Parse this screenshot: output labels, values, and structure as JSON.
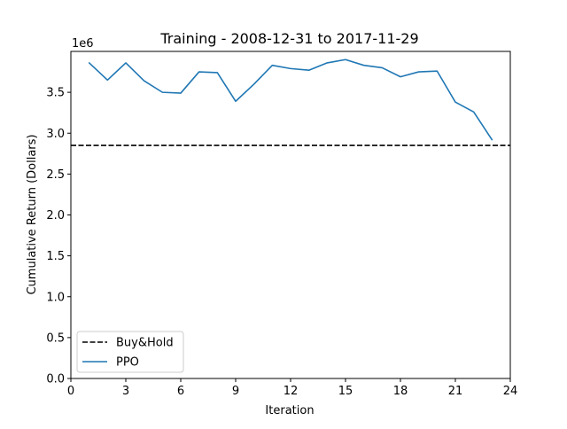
{
  "chart_data": {
    "type": "line",
    "title": "Training - 2008-12-31 to 2017-11-29",
    "xlabel": "Iteration",
    "ylabel": "Cumulative Return (Dollars)",
    "y_offset_text": "1e6",
    "xlim": [
      0,
      24
    ],
    "ylim": [
      0.0,
      4.0
    ],
    "x_ticks": [
      0,
      3,
      6,
      9,
      12,
      15,
      18,
      21,
      24
    ],
    "x_tick_labels": [
      "0",
      "3",
      "6",
      "9",
      "12",
      "15",
      "18",
      "21",
      "24"
    ],
    "y_ticks": [
      0.0,
      0.5,
      1.0,
      1.5,
      2.0,
      2.5,
      3.0,
      3.5
    ],
    "y_tick_labels": [
      "0.0",
      "0.5",
      "1.0",
      "1.5",
      "2.0",
      "2.5",
      "3.0",
      "3.5"
    ],
    "grid": false,
    "legend_position": "lower-left",
    "series": [
      {
        "name": "Buy&Hold",
        "style": "dashed",
        "color": "#000000",
        "x": [
          0,
          24
        ],
        "y": [
          2.85,
          2.85
        ]
      },
      {
        "name": "PPO",
        "style": "solid",
        "color": "#1f77b4",
        "x": [
          1,
          2,
          3,
          4,
          5,
          6,
          7,
          8,
          9,
          10,
          11,
          12,
          13,
          14,
          15,
          16,
          17,
          18,
          19,
          20,
          21,
          22,
          23
        ],
        "y": [
          3.86,
          3.65,
          3.86,
          3.64,
          3.5,
          3.49,
          3.75,
          3.74,
          3.39,
          3.6,
          3.83,
          3.79,
          3.77,
          3.86,
          3.9,
          3.83,
          3.8,
          3.69,
          3.75,
          3.76,
          3.38,
          3.26,
          2.92
        ]
      }
    ]
  }
}
